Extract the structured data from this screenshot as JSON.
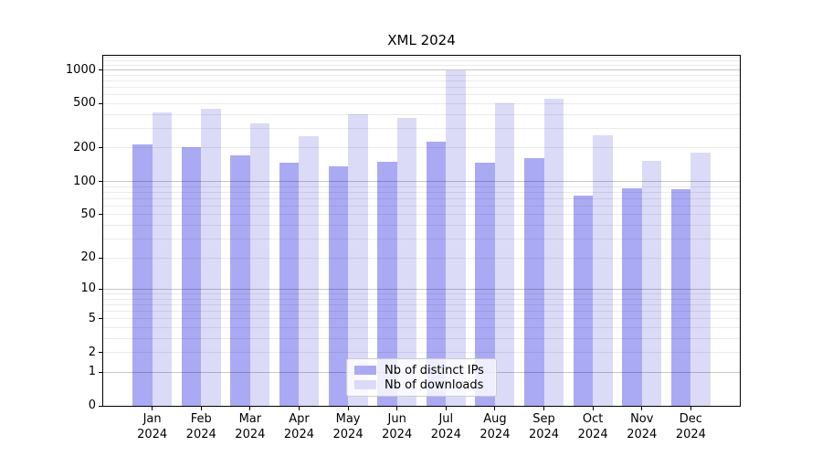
{
  "figure": {
    "title": "XML 2024"
  },
  "chart_data": {
    "type": "bar",
    "title": "XML 2024",
    "categories": [
      "Jan",
      "Feb",
      "Mar",
      "Apr",
      "May",
      "Jun",
      "Jul",
      "Aug",
      "Sep",
      "Oct",
      "Nov",
      "Dec"
    ],
    "category_year": "2024",
    "series": [
      {
        "name": "Nb of distinct IPs",
        "color": "#aaaaf4",
        "values": [
          215,
          202,
          173,
          149,
          138,
          151,
          226,
          147,
          162,
          74,
          87,
          85
        ]
      },
      {
        "name": "Nb of downloads",
        "color": "#dbdbf8",
        "values": [
          415,
          448,
          332,
          254,
          398,
          370,
          995,
          500,
          556,
          259,
          154,
          183
        ]
      }
    ],
    "xlabel": "",
    "ylabel": "",
    "y_scale": "log1p",
    "y_max": 1340,
    "y_ticks": [
      0,
      1,
      2,
      5,
      10,
      20,
      50,
      100,
      200,
      500,
      1000
    ],
    "decade_gridlines": [
      1,
      10,
      100,
      1000
    ],
    "minor_gridlines": [
      3,
      4,
      6,
      7,
      8,
      9,
      30,
      40,
      60,
      70,
      80,
      90,
      300,
      400,
      600,
      700,
      800,
      900,
      1100,
      1200,
      1300
    ],
    "grid": true,
    "legend_position": "lower-center"
  },
  "colors": {
    "bar_distinct_ips": "#aaaaf4",
    "bar_downloads": "#dbdbf8",
    "grid_decade": "rgba(0,0,0,0.22)",
    "grid_minor": "rgba(0,0,0,0.08)",
    "spine": "#000000",
    "background": "#ffffff"
  }
}
